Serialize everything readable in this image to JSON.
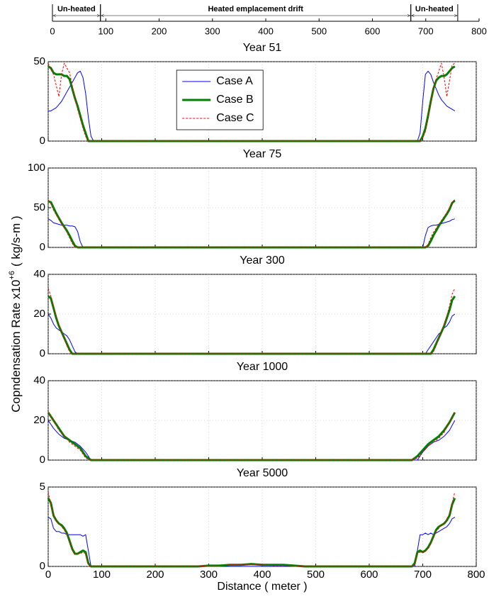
{
  "shared_ylabel": {
    "text": "Copndensation Rate x10",
    "superscript": "+6",
    "unit": "( kg/s-m )"
  },
  "chart_data": [
    {
      "type": "ruler",
      "xlim": [
        0,
        800
      ],
      "xticks": [
        0,
        100,
        200,
        300,
        400,
        500,
        600,
        700,
        800
      ],
      "spans": [
        {
          "label": "Un-heated",
          "start": 0,
          "end": 90
        },
        {
          "label": "Heated emplacement drift",
          "start": 90,
          "end": 672
        },
        {
          "label": "Un-heated",
          "start": 672,
          "end": 760
        }
      ]
    },
    {
      "type": "line",
      "title": "Year 51",
      "xlim": [
        0,
        800
      ],
      "ylim": [
        0,
        50
      ],
      "xticks": [
        0,
        100,
        200,
        300,
        400,
        500,
        600,
        700,
        800
      ],
      "yticks": [
        0,
        50
      ],
      "grid": true,
      "legend": "upper center",
      "x": [
        0,
        5,
        10,
        15,
        20,
        25,
        30,
        35,
        40,
        45,
        50,
        55,
        60,
        65,
        70,
        75,
        80,
        85,
        90,
        100,
        680,
        690,
        695,
        700,
        705,
        710,
        715,
        720,
        725,
        730,
        735,
        740,
        745,
        750,
        755,
        760
      ],
      "series": [
        {
          "name": "Case A",
          "color": "#0000ff",
          "linewidth": 1,
          "linestyle": "solid",
          "values": [
            19,
            19,
            20,
            21,
            23,
            25,
            28,
            31,
            34,
            37,
            40,
            43,
            44,
            40,
            30,
            15,
            3,
            0,
            0,
            0,
            0,
            0,
            5,
            25,
            42,
            44,
            42,
            37,
            33,
            29,
            26,
            24,
            22,
            21,
            20,
            19
          ]
        },
        {
          "name": "Case B",
          "color": "#008000",
          "linewidth": 3,
          "linestyle": "solid",
          "values": [
            47,
            46,
            43,
            42,
            42,
            42,
            41,
            41,
            39,
            33,
            27,
            22,
            16,
            10,
            5,
            0,
            0,
            0,
            0,
            0,
            0,
            0,
            0,
            3,
            8,
            16,
            25,
            33,
            38,
            40,
            41,
            41,
            42,
            44,
            46,
            47
          ]
        },
        {
          "name": "Case C",
          "color": "#ff0000",
          "linewidth": 1,
          "linestyle": "dashed",
          "values": [
            49,
            45,
            42,
            35,
            28,
            42,
            49,
            46,
            43,
            35,
            27,
            20,
            14,
            8,
            3,
            0,
            0,
            0,
            0,
            0,
            0,
            0,
            0,
            2,
            6,
            14,
            24,
            33,
            39,
            44,
            49,
            40,
            28,
            38,
            48,
            49
          ]
        }
      ]
    },
    {
      "type": "line",
      "title": "Year 75",
      "xlim": [
        0,
        800
      ],
      "ylim": [
        0,
        100
      ],
      "xticks": [
        0,
        100,
        200,
        300,
        400,
        500,
        600,
        700,
        800
      ],
      "yticks": [
        0,
        50,
        100
      ],
      "grid": true,
      "x": [
        0,
        5,
        10,
        15,
        20,
        25,
        30,
        35,
        40,
        45,
        50,
        55,
        60,
        65,
        70,
        75,
        80,
        90,
        100,
        680,
        690,
        695,
        700,
        705,
        710,
        715,
        720,
        725,
        730,
        735,
        740,
        745,
        750,
        755,
        760
      ],
      "series": [
        {
          "color": "#0000ff",
          "linewidth": 1,
          "linestyle": "solid",
          "values": [
            36,
            34,
            31,
            30,
            29,
            28,
            28,
            28,
            27,
            27,
            26,
            20,
            7,
            0,
            0,
            0,
            0,
            0,
            0,
            0,
            0,
            0,
            0,
            15,
            25,
            27,
            28,
            28,
            29,
            30,
            31,
            32,
            33,
            35,
            36
          ]
        },
        {
          "color": "#008000",
          "linewidth": 3,
          "linestyle": "solid",
          "values": [
            58,
            57,
            50,
            43,
            37,
            31,
            26,
            21,
            15,
            8,
            2,
            0,
            0,
            0,
            0,
            0,
            0,
            0,
            0,
            0,
            0,
            0,
            0,
            0,
            2,
            8,
            15,
            21,
            27,
            32,
            37,
            42,
            48,
            56,
            59
          ]
        },
        {
          "color": "#ff0000",
          "linewidth": 1,
          "linestyle": "dashed",
          "values": [
            60,
            55,
            47,
            41,
            35,
            30,
            25,
            19,
            12,
            5,
            0,
            0,
            0,
            0,
            0,
            0,
            0,
            0,
            0,
            0,
            0,
            0,
            0,
            0,
            4,
            12,
            19,
            24,
            29,
            34,
            39,
            44,
            50,
            57,
            60
          ]
        }
      ]
    },
    {
      "type": "line",
      "title": "Year 300",
      "xlim": [
        0,
        800
      ],
      "ylim": [
        0,
        40
      ],
      "xticks": [
        0,
        100,
        200,
        300,
        400,
        500,
        600,
        700,
        800
      ],
      "yticks": [
        0,
        20,
        40
      ],
      "grid": true,
      "x": [
        0,
        5,
        10,
        15,
        20,
        25,
        30,
        35,
        40,
        45,
        50,
        55,
        60,
        65,
        70,
        75,
        80,
        90,
        100,
        680,
        690,
        695,
        700,
        705,
        710,
        715,
        720,
        725,
        730,
        735,
        740,
        745,
        750,
        755,
        760
      ],
      "series": [
        {
          "color": "#0000ff",
          "linewidth": 1,
          "linestyle": "solid",
          "values": [
            20,
            18,
            15,
            13,
            12,
            11,
            10,
            9,
            7,
            4,
            1,
            0,
            0,
            0,
            0,
            0,
            0,
            0,
            0,
            0,
            0,
            0,
            0,
            0,
            2,
            4,
            6,
            8,
            10,
            11,
            13,
            14,
            16,
            19,
            20
          ]
        },
        {
          "color": "#008000",
          "linewidth": 3,
          "linestyle": "solid",
          "values": [
            29,
            28,
            23,
            18,
            14,
            11,
            8,
            5,
            2,
            0,
            0,
            0,
            0,
            0,
            0,
            0,
            0,
            0,
            0,
            0,
            0,
            0,
            0,
            0,
            0,
            0,
            2,
            5,
            8,
            11,
            14,
            18,
            22,
            27,
            29
          ]
        },
        {
          "color": "#ff0000",
          "linewidth": 1,
          "linestyle": "dashed",
          "values": [
            33,
            29,
            24,
            19,
            15,
            11,
            8,
            4,
            1,
            0,
            0,
            0,
            0,
            0,
            0,
            0,
            0,
            0,
            0,
            0,
            0,
            0,
            0,
            0,
            0,
            0,
            1,
            4,
            8,
            11,
            15,
            19,
            24,
            30,
            33
          ]
        }
      ]
    },
    {
      "type": "line",
      "title": "Year 1000",
      "xlim": [
        0,
        800
      ],
      "ylim": [
        0,
        40
      ],
      "xticks": [
        0,
        100,
        200,
        300,
        400,
        500,
        600,
        700,
        800
      ],
      "yticks": [
        0,
        20,
        40
      ],
      "grid": true,
      "x": [
        0,
        10,
        20,
        30,
        40,
        50,
        60,
        70,
        80,
        90,
        100,
        680,
        690,
        700,
        710,
        720,
        730,
        740,
        750,
        760
      ],
      "series": [
        {
          "color": "#0000ff",
          "linewidth": 1,
          "linestyle": "solid",
          "values": [
            20,
            16,
            13,
            11,
            10,
            9,
            7,
            4,
            0,
            0,
            0,
            0,
            0,
            4,
            7,
            9,
            10,
            12,
            15,
            20
          ]
        },
        {
          "color": "#008000",
          "linewidth": 3,
          "linestyle": "solid",
          "values": [
            24,
            20,
            16,
            12,
            10,
            8,
            6,
            2,
            0,
            0,
            0,
            0,
            2,
            5,
            8,
            10,
            12,
            15,
            19,
            24
          ]
        },
        {
          "color": "#ff0000",
          "linewidth": 1,
          "linestyle": "dashed",
          "values": [
            24,
            20,
            15,
            12,
            9,
            7,
            5,
            1,
            0,
            0,
            0,
            0,
            1,
            4,
            7,
            9,
            11,
            14,
            19,
            24
          ]
        }
      ]
    },
    {
      "type": "line",
      "title": "Year 5000",
      "xlabel": "Distance ( meter )",
      "xlim": [
        0,
        800
      ],
      "ylim": [
        0,
        5
      ],
      "xticks": [
        0,
        100,
        200,
        300,
        400,
        500,
        600,
        700,
        800
      ],
      "yticks": [
        0,
        5
      ],
      "grid": true,
      "x": [
        0,
        5,
        10,
        15,
        20,
        25,
        30,
        35,
        40,
        45,
        50,
        55,
        60,
        65,
        70,
        75,
        80,
        90,
        100,
        280,
        300,
        320,
        340,
        360,
        380,
        400,
        420,
        440,
        460,
        480,
        500,
        680,
        685,
        690,
        695,
        700,
        705,
        710,
        715,
        720,
        725,
        730,
        735,
        740,
        745,
        750,
        755,
        760
      ],
      "series": [
        {
          "color": "#0000ff",
          "linewidth": 1,
          "linestyle": "solid",
          "values": [
            3.1,
            3.0,
            2.4,
            2.2,
            2.2,
            2.1,
            2.1,
            2.0,
            2.0,
            2.0,
            2.0,
            2.0,
            2.0,
            1.9,
            2.0,
            1.0,
            0,
            0,
            0,
            0,
            0,
            0,
            0,
            0,
            0,
            0,
            0,
            0,
            0,
            0,
            0,
            0,
            0,
            1.0,
            2.0,
            2.0,
            2.1,
            2.0,
            2.1,
            2.0,
            2.1,
            2.2,
            2.3,
            2.4,
            2.5,
            2.7,
            3.0,
            3.1
          ]
        },
        {
          "color": "#008000",
          "linewidth": 3,
          "linestyle": "solid",
          "values": [
            4.3,
            4.0,
            3.2,
            2.9,
            2.7,
            2.6,
            2.4,
            2.1,
            1.6,
            1.1,
            0.8,
            0.8,
            0.9,
            1.0,
            0.9,
            0.2,
            0,
            0,
            0,
            0,
            0.05,
            0.05,
            0.1,
            0.1,
            0.15,
            0.1,
            0.1,
            0.1,
            0.05,
            0,
            0,
            0,
            0.2,
            0.9,
            1.0,
            0.9,
            1.0,
            1.2,
            1.5,
            1.9,
            2.3,
            2.5,
            2.6,
            2.7,
            2.9,
            3.2,
            3.9,
            4.3
          ]
        },
        {
          "color": "#ff0000",
          "linewidth": 1,
          "linestyle": "dashed",
          "values": [
            4.7,
            3.9,
            3.3,
            2.9,
            2.7,
            2.5,
            2.3,
            2.0,
            1.5,
            1.0,
            0.8,
            0.8,
            0.8,
            0.9,
            0.8,
            0.1,
            0,
            0,
            0,
            0,
            0.05,
            0.05,
            0.1,
            0.1,
            0.1,
            0.1,
            0.05,
            0.05,
            0.05,
            0,
            0,
            0,
            0.1,
            0.8,
            0.9,
            0.9,
            1.0,
            1.1,
            1.4,
            1.8,
            2.2,
            2.4,
            2.6,
            2.7,
            3.0,
            3.3,
            4.0,
            4.7
          ]
        }
      ]
    }
  ]
}
